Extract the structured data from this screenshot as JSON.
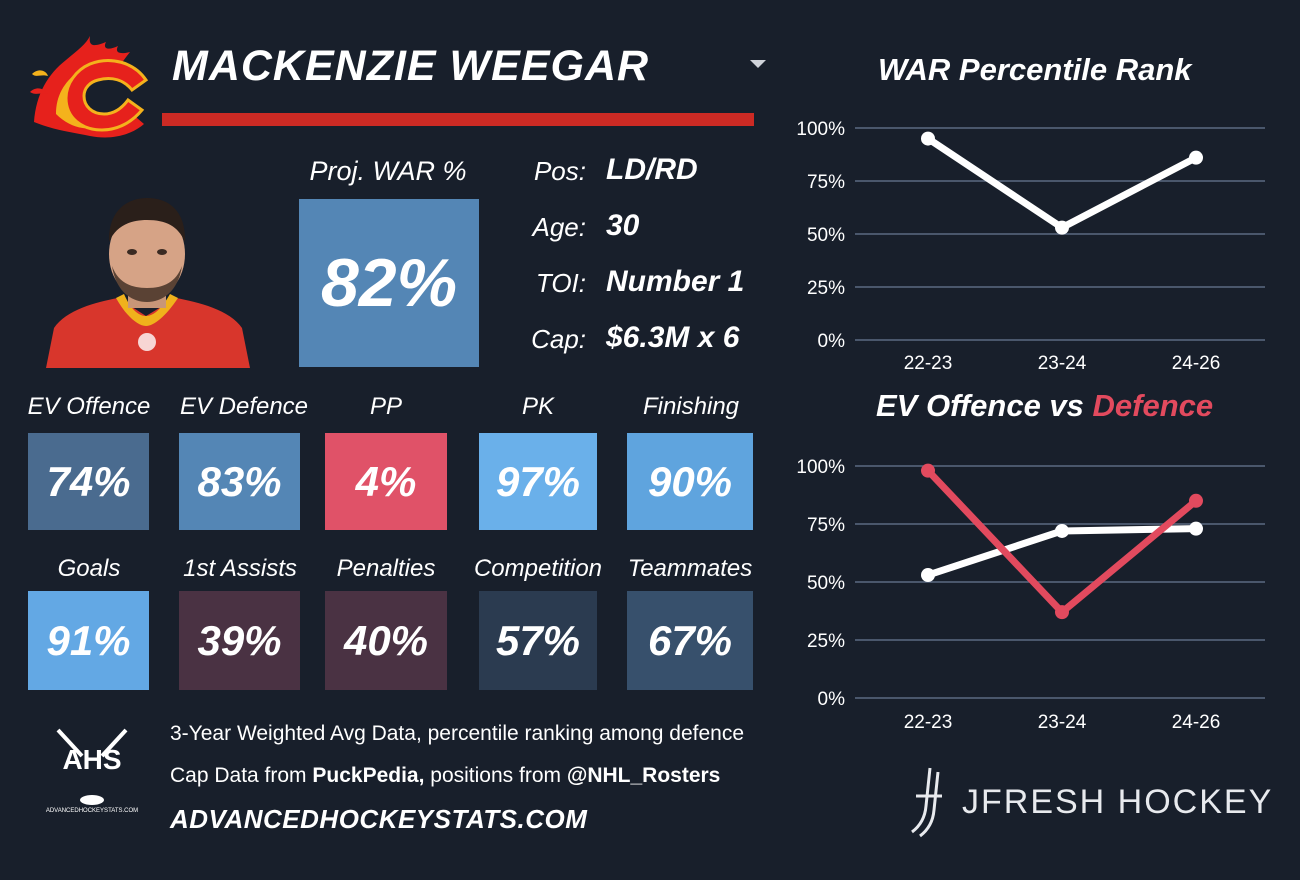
{
  "player": {
    "name": "MACKENZIE WEEGAR",
    "proj_war_label": "Proj. WAR %",
    "proj_war_value": "82%"
  },
  "info": [
    {
      "label": "Pos:",
      "value": "LD/RD"
    },
    {
      "label": "Age:",
      "value": "30"
    },
    {
      "label": "TOI:",
      "value": "Number 1"
    },
    {
      "label": "Cap:",
      "value": "$6.3M x 6"
    }
  ],
  "tiles_row1": [
    {
      "label": "EV Offence",
      "value": "74%",
      "color": "#4a6b8f"
    },
    {
      "label": "EV Defence",
      "value": "83%",
      "color": "#5486b5"
    },
    {
      "label": "PP",
      "value": "4%",
      "color": "#e05268"
    },
    {
      "label": "PK",
      "value": "97%",
      "color": "#6ab0ea"
    },
    {
      "label": "Finishing",
      "value": "90%",
      "color": "#5fa4de"
    }
  ],
  "tiles_row2": [
    {
      "label": "Goals",
      "value": "91%",
      "color": "#63a8e4"
    },
    {
      "label": "1st Assists",
      "value": "39%",
      "color": "#4a3243"
    },
    {
      "label": "Penalties",
      "value": "40%",
      "color": "#4a3243"
    },
    {
      "label": "Competition",
      "value": "57%",
      "color": "#2b3b50"
    },
    {
      "label": "Teammates",
      "value": "67%",
      "color": "#37506c"
    }
  ],
  "footer": {
    "line1": "3-Year Weighted Avg Data, percentile ranking among defence",
    "line2_prefix": "Cap Data from ",
    "line2_bold1": "PuckPedia,",
    "line2_mid": " positions from ",
    "line2_bold2": "@NHL_Rosters",
    "site": "ADVANCEDHOCKEYSTATS.COM",
    "ahs_logo_text": "AHS",
    "ahs_logo_sub": "ADVANCEDHOCKEYSTATS.COM",
    "brand": "JFRESH HOCKEY"
  },
  "colors": {
    "background": "#181f2b",
    "accent_red": "#cc2a24",
    "defence_line": "#e24a5e",
    "offence_line": "#ffffff",
    "grid": "#5a6a82"
  },
  "chart_data": [
    {
      "type": "line",
      "title": "WAR Percentile Rank",
      "categories": [
        "22-23",
        "23-24",
        "24-26"
      ],
      "y_ticks": [
        "100%",
        "75%",
        "50%",
        "25%",
        "0%"
      ],
      "ylim": [
        0,
        100
      ],
      "grid": true,
      "series": [
        {
          "values": [
            95,
            53,
            86
          ],
          "color": "#ffffff"
        }
      ]
    },
    {
      "type": "line",
      "title_part1": "EV Offence vs ",
      "title_part2": "Defence",
      "categories": [
        "22-23",
        "23-24",
        "24-26"
      ],
      "y_ticks": [
        "100%",
        "75%",
        "50%",
        "25%",
        "0%"
      ],
      "ylim": [
        0,
        100
      ],
      "grid": true,
      "series": [
        {
          "values": [
            53,
            72,
            73
          ],
          "color": "#ffffff"
        },
        {
          "values": [
            98,
            37,
            85
          ],
          "color": "#e24a5e"
        }
      ]
    }
  ]
}
